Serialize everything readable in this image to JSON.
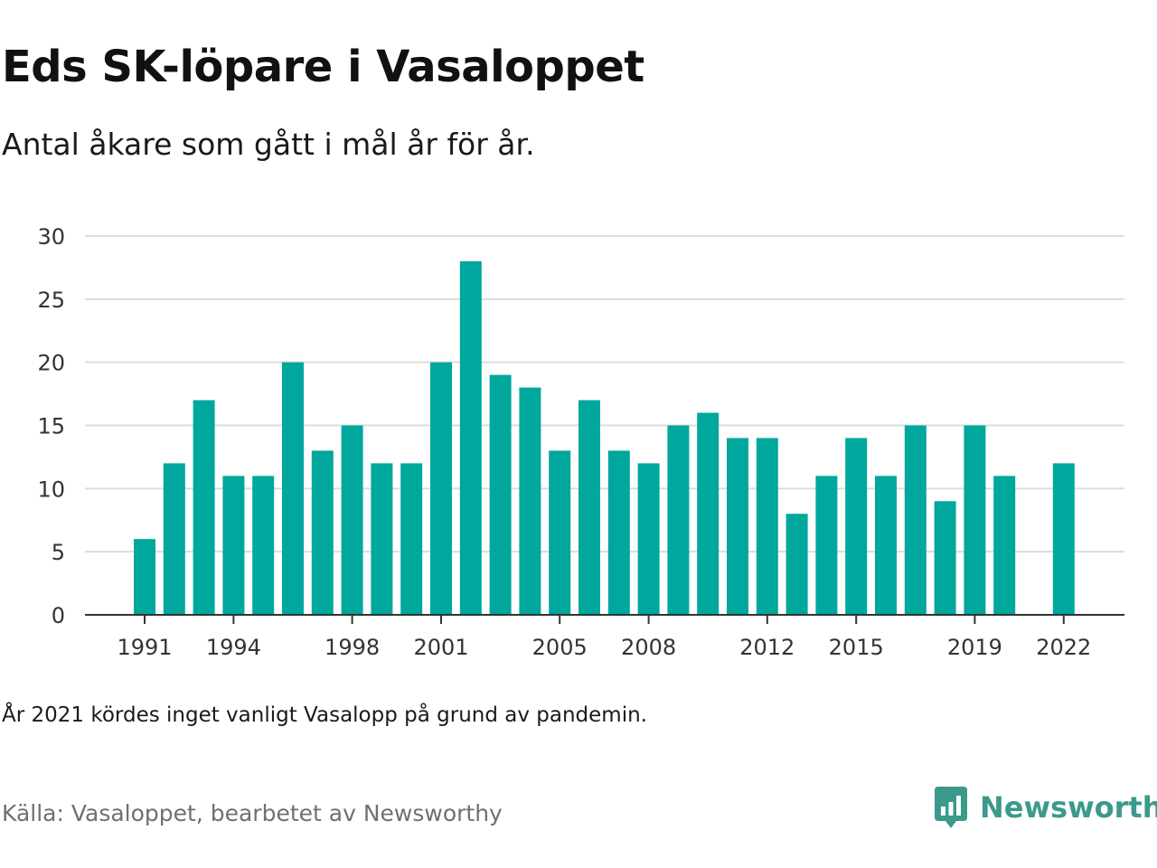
{
  "header": {
    "title": "Eds SK-löpare i Vasaloppet",
    "subtitle": "Antal åkare som gått i mål år för år."
  },
  "footer": {
    "note": "År 2021 kördes inget vanligt Vasalopp på grund av pandemin.",
    "source": "Källa: Vasaloppet, bearbetet av Newsworthy",
    "brand": "Newsworthy",
    "brand_icon": "newsworthy-logo-icon"
  },
  "colors": {
    "bar": "#00a79d",
    "grid": "#dcdcdc",
    "axis": "#333333",
    "brand": "#3b9a8b"
  },
  "chart_data": {
    "type": "bar",
    "categories": [
      1991,
      1992,
      1993,
      1994,
      1995,
      1996,
      1997,
      1998,
      1999,
      2000,
      2001,
      2002,
      2003,
      2004,
      2005,
      2006,
      2007,
      2008,
      2009,
      2010,
      2011,
      2012,
      2013,
      2014,
      2015,
      2016,
      2017,
      2018,
      2019,
      2020,
      2021,
      2022
    ],
    "values": [
      6,
      12,
      17,
      11,
      11,
      20,
      13,
      15,
      12,
      12,
      20,
      28,
      19,
      18,
      13,
      17,
      13,
      12,
      15,
      16,
      14,
      14,
      8,
      11,
      14,
      11,
      15,
      9,
      15,
      11,
      null,
      12
    ],
    "x_tick_labels": [
      "1991",
      "1994",
      "1998",
      "2001",
      "2005",
      "2008",
      "2012",
      "2015",
      "2019",
      "2022"
    ],
    "y_ticks": [
      0,
      5,
      10,
      15,
      20,
      25,
      30
    ],
    "ylim": [
      0,
      30
    ],
    "title": "Eds SK-löpare i Vasaloppet",
    "xlabel": "",
    "ylabel": "",
    "grid": true
  }
}
